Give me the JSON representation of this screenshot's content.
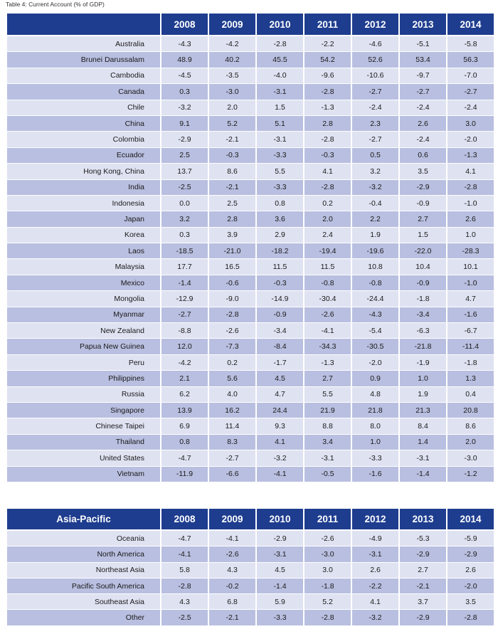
{
  "caption": "Table 4: Current Account (% of GDP)",
  "years": [
    "2008",
    "2009",
    "2010",
    "2011",
    "2012",
    "2013",
    "2014"
  ],
  "table1": {
    "corner": "",
    "rows": [
      {
        "label": "Australia",
        "values": [
          "-4.3",
          "-4.2",
          "-2.8",
          "-2.2",
          "-4.6",
          "-5.1",
          "-5.8"
        ]
      },
      {
        "label": "Brunei Darussalam",
        "values": [
          "48.9",
          "40.2",
          "45.5",
          "54.2",
          "52.6",
          "53.4",
          "56.3"
        ]
      },
      {
        "label": "Cambodia",
        "values": [
          "-4.5",
          "-3.5",
          "-4.0",
          "-9.6",
          "-10.6",
          "-9.7",
          "-7.0"
        ]
      },
      {
        "label": "Canada",
        "values": [
          "0.3",
          "-3.0",
          "-3.1",
          "-2.8",
          "-2.7",
          "-2.7",
          "-2.7"
        ]
      },
      {
        "label": "Chile",
        "values": [
          "-3.2",
          "2.0",
          "1.5",
          "-1.3",
          "-2.4",
          "-2.4",
          "-2.4"
        ]
      },
      {
        "label": "China",
        "values": [
          "9.1",
          "5.2",
          "5.1",
          "2.8",
          "2.3",
          "2.6",
          "3.0"
        ]
      },
      {
        "label": "Colombia",
        "values": [
          "-2.9",
          "-2.1",
          "-3.1",
          "-2.8",
          "-2.7",
          "-2.4",
          "-2.0"
        ]
      },
      {
        "label": "Ecuador",
        "values": [
          "2.5",
          "-0.3",
          "-3.3",
          "-0.3",
          "0.5",
          "0.6",
          "-1.3"
        ]
      },
      {
        "label": "Hong Kong, China",
        "values": [
          "13.7",
          "8.6",
          "5.5",
          "4.1",
          "3.2",
          "3.5",
          "4.1"
        ]
      },
      {
        "label": "India",
        "values": [
          "-2.5",
          "-2.1",
          "-3.3",
          "-2.8",
          "-3.2",
          "-2.9",
          "-2.8"
        ]
      },
      {
        "label": "Indonesia",
        "values": [
          "0.0",
          "2.5",
          "0.8",
          "0.2",
          "-0.4",
          "-0.9",
          "-1.0"
        ]
      },
      {
        "label": "Japan",
        "values": [
          "3.2",
          "2.8",
          "3.6",
          "2.0",
          "2.2",
          "2.7",
          "2.6"
        ]
      },
      {
        "label": "Korea",
        "values": [
          "0.3",
          "3.9",
          "2.9",
          "2.4",
          "1.9",
          "1.5",
          "1.0"
        ]
      },
      {
        "label": "Laos",
        "values": [
          "-18.5",
          "-21.0",
          "-18.2",
          "-19.4",
          "-19.6",
          "-22.0",
          "-28.3"
        ]
      },
      {
        "label": "Malaysia",
        "values": [
          "17.7",
          "16.5",
          "11.5",
          "11.5",
          "10.8",
          "10.4",
          "10.1"
        ]
      },
      {
        "label": "Mexico",
        "values": [
          "-1.4",
          "-0.6",
          "-0.3",
          "-0.8",
          "-0.8",
          "-0.9",
          "-1.0"
        ]
      },
      {
        "label": "Mongolia",
        "values": [
          "-12.9",
          "-9.0",
          "-14.9",
          "-30.4",
          "-24.4",
          "-1.8",
          "4.7"
        ]
      },
      {
        "label": "Myanmar",
        "values": [
          "-2.7",
          "-2.8",
          "-0.9",
          "-2.6",
          "-4.3",
          "-3.4",
          "-1.6"
        ]
      },
      {
        "label": "New Zealand",
        "values": [
          "-8.8",
          "-2.6",
          "-3.4",
          "-4.1",
          "-5.4",
          "-6.3",
          "-6.7"
        ]
      },
      {
        "label": "Papua New Guinea",
        "values": [
          "12.0",
          "-7.3",
          "-8.4",
          "-34.3",
          "-30.5",
          "-21.8",
          "-11.4"
        ]
      },
      {
        "label": "Peru",
        "values": [
          "-4.2",
          "0.2",
          "-1.7",
          "-1.3",
          "-2.0",
          "-1.9",
          "-1.8"
        ]
      },
      {
        "label": "Philippines",
        "values": [
          "2.1",
          "5.6",
          "4.5",
          "2.7",
          "0.9",
          "1.0",
          "1.3"
        ]
      },
      {
        "label": "Russia",
        "values": [
          "6.2",
          "4.0",
          "4.7",
          "5.5",
          "4.8",
          "1.9",
          "0.4"
        ]
      },
      {
        "label": "Singapore",
        "values": [
          "13.9",
          "16.2",
          "24.4",
          "21.9",
          "21.8",
          "21.3",
          "20.8"
        ]
      },
      {
        "label": "Chinese Taipei",
        "values": [
          "6.9",
          "11.4",
          "9.3",
          "8.8",
          "8.0",
          "8.4",
          "8.6"
        ]
      },
      {
        "label": "Thailand",
        "values": [
          "0.8",
          "8.3",
          "4.1",
          "3.4",
          "1.0",
          "1.4",
          "2.0"
        ]
      },
      {
        "label": "United States",
        "values": [
          "-4.7",
          "-2.7",
          "-3.2",
          "-3.1",
          "-3.3",
          "-3.1",
          "-3.0"
        ]
      },
      {
        "label": "Vietnam",
        "values": [
          "-11.9",
          "-6.6",
          "-4.1",
          "-0.5",
          "-1.6",
          "-1.4",
          "-1.2"
        ]
      }
    ]
  },
  "table2": {
    "corner": "Asia-Pacific",
    "rows": [
      {
        "label": "Oceania",
        "values": [
          "-4.7",
          "-4.1",
          "-2.9",
          "-2.6",
          "-4.9",
          "-5.3",
          "-5.9"
        ]
      },
      {
        "label": "North America",
        "values": [
          "-4.1",
          "-2.6",
          "-3.1",
          "-3.0",
          "-3.1",
          "-2.9",
          "-2.9"
        ]
      },
      {
        "label": "Northeast Asia",
        "values": [
          "5.8",
          "4.3",
          "4.5",
          "3.0",
          "2.6",
          "2.7",
          "2.6"
        ]
      },
      {
        "label": "Pacific South America",
        "values": [
          "-2.8",
          "-0.2",
          "-1.4",
          "-1.8",
          "-2.2",
          "-2.1",
          "-2.0"
        ]
      },
      {
        "label": "Southeast Asia",
        "values": [
          "4.3",
          "6.8",
          "5.9",
          "5.2",
          "4.1",
          "3.7",
          "3.5"
        ]
      },
      {
        "label": "Other",
        "values": [
          "-2.5",
          "-2.1",
          "-3.3",
          "-2.8",
          "-3.2",
          "-2.9",
          "-2.8"
        ]
      }
    ]
  },
  "colors": {
    "header_bg": "#1e3d8f",
    "row_light": "#dfe2f1",
    "row_dark": "#b9bfe0"
  }
}
